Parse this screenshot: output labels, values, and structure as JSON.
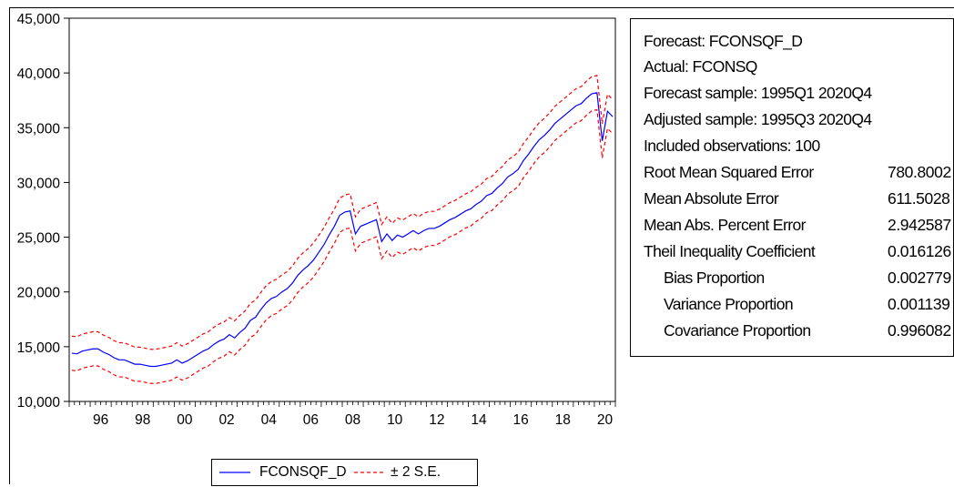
{
  "chart_data": {
    "type": "line",
    "title": "",
    "xlabel": "",
    "ylabel": "",
    "ylim": [
      10000,
      45000
    ],
    "xlim": [
      "1995Q1",
      "2020Q4"
    ],
    "y_ticks": [
      "10,000",
      "15,000",
      "20,000",
      "25,000",
      "30,000",
      "35,000",
      "40,000",
      "45,000"
    ],
    "x_ticks": [
      "96",
      "98",
      "00",
      "02",
      "04",
      "06",
      "08",
      "10",
      "12",
      "14",
      "16",
      "18",
      "20"
    ],
    "se_band_width": 1560,
    "series": [
      {
        "name": "FCONSQF_D",
        "color": "#0000ff",
        "style": "solid",
        "x": [
          "1995Q1",
          "1995Q2",
          "1995Q3",
          "1995Q4",
          "1996Q1",
          "1996Q2",
          "1996Q3",
          "1996Q4",
          "1997Q1",
          "1997Q2",
          "1997Q3",
          "1997Q4",
          "1998Q1",
          "1998Q2",
          "1998Q3",
          "1998Q4",
          "1999Q1",
          "1999Q2",
          "1999Q3",
          "1999Q4",
          "2000Q1",
          "2000Q2",
          "2000Q3",
          "2000Q4",
          "2001Q1",
          "2001Q2",
          "2001Q3",
          "2001Q4",
          "2002Q1",
          "2002Q2",
          "2002Q3",
          "2002Q4",
          "2003Q1",
          "2003Q2",
          "2003Q3",
          "2003Q4",
          "2004Q1",
          "2004Q2",
          "2004Q3",
          "2004Q4",
          "2005Q1",
          "2005Q2",
          "2005Q3",
          "2005Q4",
          "2006Q1",
          "2006Q2",
          "2006Q3",
          "2006Q4",
          "2007Q1",
          "2007Q2",
          "2007Q3",
          "2007Q4",
          "2008Q1",
          "2008Q2",
          "2008Q3",
          "2008Q4",
          "2009Q1",
          "2009Q2",
          "2009Q3",
          "2009Q4",
          "2010Q1",
          "2010Q2",
          "2010Q3",
          "2010Q4",
          "2011Q1",
          "2011Q2",
          "2011Q3",
          "2011Q4",
          "2012Q1",
          "2012Q2",
          "2012Q3",
          "2012Q4",
          "2013Q1",
          "2013Q2",
          "2013Q3",
          "2013Q4",
          "2014Q1",
          "2014Q2",
          "2014Q3",
          "2014Q4",
          "2015Q1",
          "2015Q2",
          "2015Q3",
          "2015Q4",
          "2016Q1",
          "2016Q2",
          "2016Q3",
          "2016Q4",
          "2017Q1",
          "2017Q2",
          "2017Q3",
          "2017Q4",
          "2018Q1",
          "2018Q2",
          "2018Q3",
          "2018Q4",
          "2019Q1",
          "2019Q2",
          "2019Q3",
          "2019Q4",
          "2020Q1",
          "2020Q2",
          "2020Q3",
          "2020Q4"
        ],
        "values": [
          14400,
          14350,
          14600,
          14700,
          14800,
          14800,
          14500,
          14300,
          14000,
          13800,
          13800,
          13600,
          13400,
          13400,
          13300,
          13200,
          13200,
          13300,
          13400,
          13500,
          13800,
          13500,
          13700,
          14000,
          14300,
          14600,
          14800,
          15200,
          15500,
          15700,
          16100,
          15800,
          16300,
          16700,
          17400,
          17700,
          18400,
          19000,
          19400,
          19600,
          20000,
          20300,
          20800,
          21500,
          22000,
          22400,
          22900,
          23600,
          24300,
          25200,
          26000,
          27000,
          27300,
          27400,
          25300,
          26000,
          26200,
          26400,
          26600,
          24600,
          25300,
          24700,
          25200,
          25000,
          25300,
          25600,
          25300,
          25600,
          25800,
          25800,
          26000,
          26300,
          26600,
          26800,
          27100,
          27400,
          27600,
          28000,
          28300,
          28800,
          29000,
          29500,
          29900,
          30500,
          30800,
          31200,
          32000,
          32600,
          33300,
          33900,
          34300,
          34800,
          35400,
          35800,
          36200,
          36600,
          37000,
          37200,
          37700,
          38100,
          38200,
          33800,
          36500,
          36000
        ]
      },
      {
        "name": "± 2 S.E.",
        "color": "#ff0000",
        "style": "dashed"
      }
    ]
  },
  "stats": {
    "forecast": "Forecast: FCONSQF_D",
    "actual": "Actual: FCONSQ",
    "forecast_sample": "Forecast sample: 1995Q1 2020Q4",
    "adjusted_sample": "Adjusted sample: 1995Q3 2020Q4",
    "included_obs": "Included observations: 100",
    "rows": [
      {
        "label": "Root Mean Squared Error",
        "value": "780.8002"
      },
      {
        "label": "Mean Absolute Error",
        "value": "611.5028"
      },
      {
        "label": "Mean Abs. Percent Error",
        "value": "2.942587"
      },
      {
        "label": "Theil Inequality Coefficient",
        "value": "0.016126"
      },
      {
        "label": "Bias Proportion",
        "value": "0.002779"
      },
      {
        "label": "Variance Proportion",
        "value": "0.001139"
      },
      {
        "label": "Covariance Proportion",
        "value": "0.996082"
      }
    ]
  },
  "legend": {
    "series1": "FCONSQF_D",
    "series2": "± 2 S.E."
  }
}
